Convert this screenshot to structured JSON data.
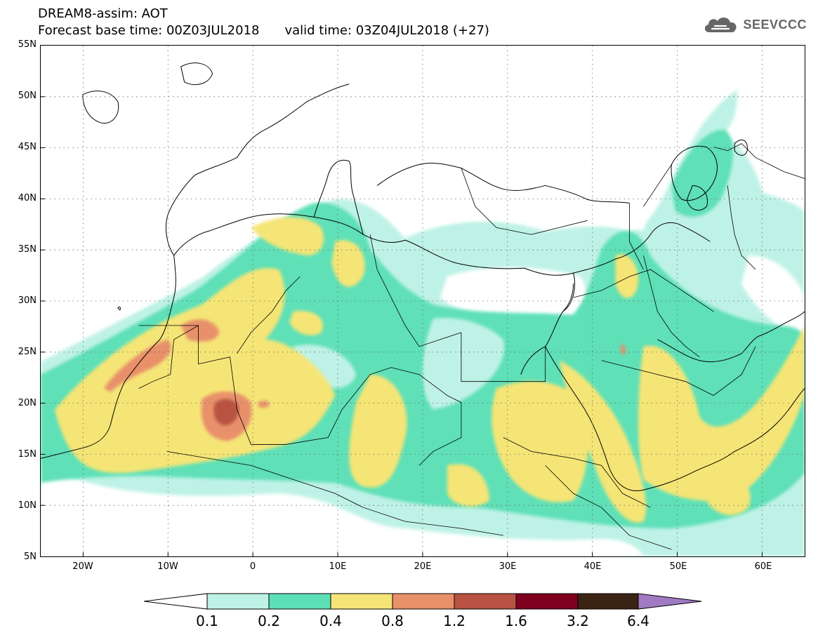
{
  "title": {
    "line1": "DREAM8-assim: AOT",
    "base_time": "Forecast base time: 00Z03JUL2018",
    "valid_time": "valid time: 03Z04JUL2018 (+27)"
  },
  "logo": {
    "text": "SEEVCCC",
    "icon": "cloud-icon"
  },
  "map": {
    "variable": "AOT",
    "projection": "lat-lon",
    "lon_range": [
      -25,
      65
    ],
    "lat_range": [
      5,
      55
    ],
    "grid": true,
    "grid_style": "dotted",
    "lat_ticks": [
      "55N",
      "50N",
      "45N",
      "40N",
      "35N",
      "30N",
      "25N",
      "20N",
      "15N",
      "10N",
      "5N"
    ],
    "lon_ticks": [
      "20W",
      "10W",
      "0",
      "10E",
      "20E",
      "30E",
      "40E",
      "50E",
      "60E"
    ],
    "hotspots": [
      {
        "region": "northern Mali",
        "lon": -3,
        "lat": 19.5,
        "level": "1.6"
      },
      {
        "region": "Western Sahara / Mauritania coast",
        "lon": -14,
        "lat": 23.5,
        "level": "1.2"
      },
      {
        "region": "northern Mauritania",
        "lon": -6,
        "lat": 26,
        "level": "1.2"
      }
    ]
  },
  "colorbar": {
    "labels": [
      "0.1",
      "0.2",
      "0.4",
      "0.8",
      "1.2",
      "1.6",
      "3.2",
      "6.4"
    ],
    "colors": [
      "#ffffff",
      "#bff2e6",
      "#5ee0b7",
      "#f5e576",
      "#e8906a",
      "#b85242",
      "#800020",
      "#3b2414",
      "#a07ac2"
    ],
    "extend": "both"
  }
}
